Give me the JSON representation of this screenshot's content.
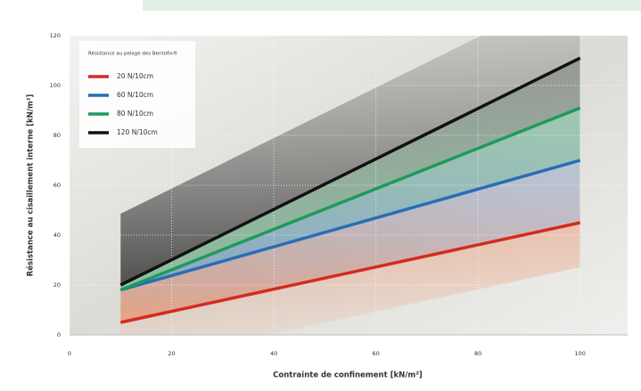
{
  "chart_data": {
    "type": "line",
    "x_label": "Contrainte de confinement [kN/m²]",
    "y_label": "Résistance au cisaillement interne [kN/m²]",
    "legend_title": "Résistance au pelage des Bentofix®",
    "x": [
      10,
      100
    ],
    "series": [
      {
        "name": "20 N/10cm",
        "color": "#d42a20",
        "values": [
          5,
          45
        ]
      },
      {
        "name": "60 N/10cm",
        "color": "#2a6db5",
        "values": [
          18,
          70
        ]
      },
      {
        "name": "80 N/10cm",
        "color": "#1f9a5a",
        "values": [
          18,
          91
        ]
      },
      {
        "name": "120 N/10cm",
        "color": "#111111",
        "values": [
          20,
          111
        ]
      }
    ],
    "xlim": [
      0,
      110
    ],
    "xticks": [
      0,
      20,
      40,
      60,
      80,
      100
    ],
    "ylim": [
      0,
      120
    ],
    "yticks": [
      0,
      20,
      40,
      60,
      80,
      100,
      120
    ],
    "grid": true,
    "legend": "upper left"
  }
}
